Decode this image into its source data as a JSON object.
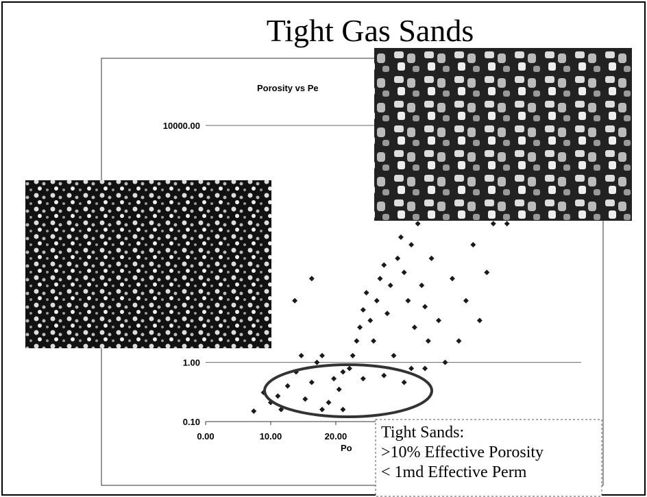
{
  "slide": {
    "title": "Tight Gas Sands",
    "note": [
      "Tight Sands:",
      ">10% Effective Porosity",
      "< 1md Effective Perm"
    ]
  },
  "chart_data": {
    "type": "scatter",
    "title": "Porosity vs Pe",
    "x_label": "Po",
    "color": "#1a1a1a",
    "log_y": true,
    "grid": true,
    "xlim": [
      0,
      57.7
    ],
    "xticks": [
      {
        "value": 0,
        "label": "0.00"
      },
      {
        "value": 10,
        "label": "10.00"
      },
      {
        "value": 20,
        "label": "20.00"
      }
    ],
    "ylim": [
      0.1,
      10000
    ],
    "yticks": [
      {
        "value": 0.1,
        "label": "0.10"
      },
      {
        "value": 1,
        "label": "1.00"
      },
      {
        "value": 10000,
        "label": "10000.00"
      }
    ],
    "x": [
      7.4,
      10.0,
      11.1,
      12.6,
      13.9,
      15.3,
      16.3,
      17.1,
      17.9,
      18.9,
      19.7,
      20.5,
      21.1,
      22.1,
      22.6,
      23.2,
      23.7,
      24.2,
      24.7,
      25.3,
      25.8,
      26.3,
      26.8,
      27.4,
      27.9,
      28.4,
      28.9,
      29.5,
      30.0,
      30.5,
      31.1,
      31.6,
      32.1,
      32.6,
      33.2,
      33.7,
      34.2,
      34.7,
      35.8,
      36.8,
      37.9,
      38.9,
      40.0,
      41.1,
      42.1,
      43.2,
      44.2,
      46.3,
      16.3,
      13.7,
      17.9,
      21.1,
      11.6,
      8.9,
      14.7,
      27.4,
      31.6,
      24.2,
      30.5,
      33.7
    ],
    "values": [
      0.15,
      0.21,
      0.27,
      0.4,
      0.69,
      0.24,
      0.46,
      1.0,
      0.16,
      0.21,
      0.53,
      0.35,
      0.69,
      0.79,
      1.3,
      2.3,
      3.9,
      7.7,
      15,
      5.1,
      2.3,
      11,
      26,
      44,
      6.7,
      20,
      1.3,
      57,
      130,
      33,
      11,
      97,
      3.9,
      220,
      20,
      8.7,
      2.3,
      57,
      5.1,
      1.0,
      26,
      2.3,
      11,
      97,
      5.1,
      33,
      220,
      220,
      26,
      11,
      1.3,
      0.16,
      0.16,
      0.31,
      1.3,
      0.6,
      0.79,
      0.53,
      0.46,
      0.79
    ]
  }
}
